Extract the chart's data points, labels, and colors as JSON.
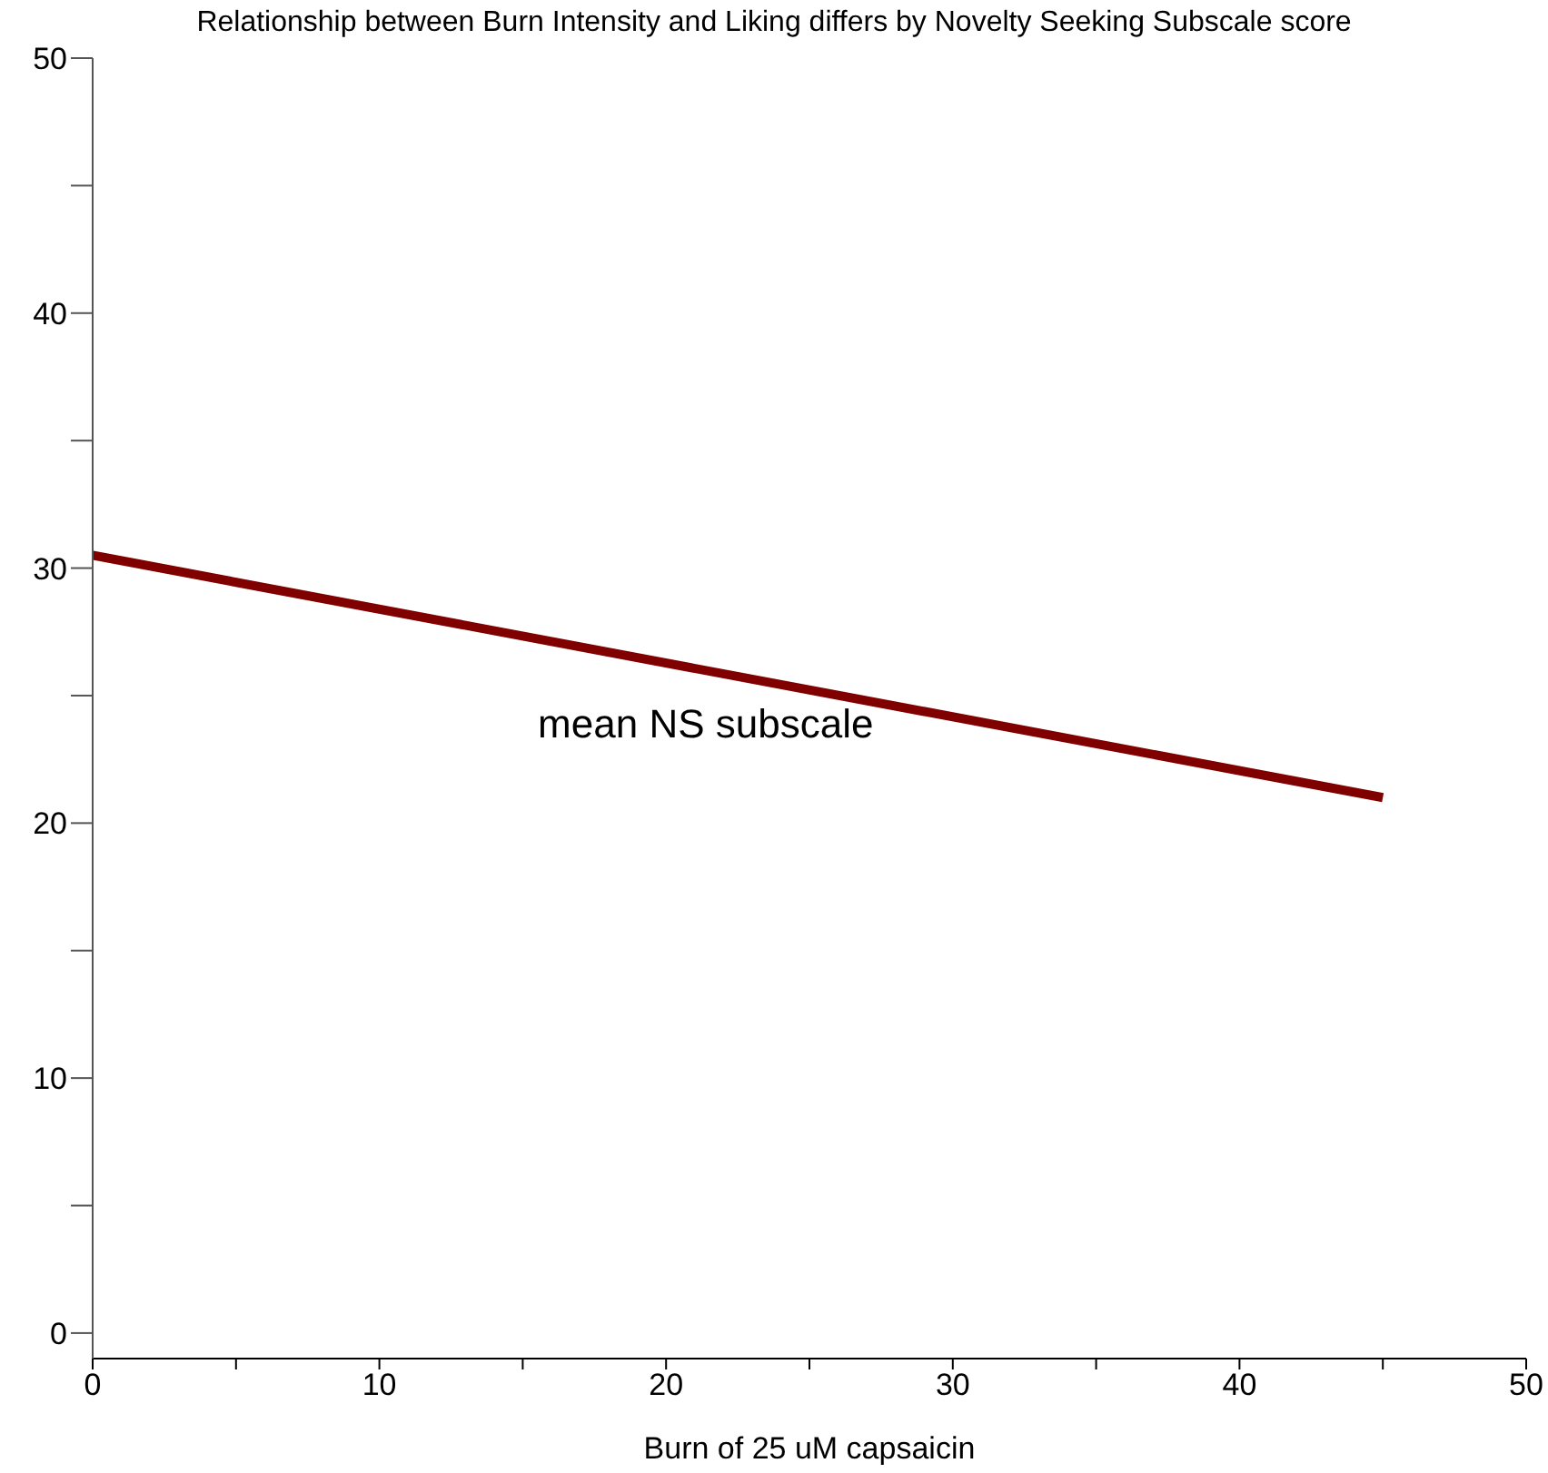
{
  "chart_data": {
    "type": "line",
    "title": "Relationship between Burn Intensity and Liking differs by Novelty Seeking Subscale score",
    "xlabel": "Burn of 25 uM capsaicin",
    "series": [
      {
        "name": "mean NS subscale",
        "color": "#800000",
        "x": [
          0,
          45
        ],
        "values": [
          30.5,
          21.0
        ]
      }
    ],
    "xlim": [
      0,
      50
    ],
    "xticks": [
      0,
      {
        "value": 5,
        "label": null
      },
      10,
      {
        "value": 15,
        "label": null
      },
      20,
      {
        "value": 25,
        "label": null
      },
      30,
      {
        "value": 35,
        "label": null
      },
      40,
      {
        "value": 45,
        "label": null
      },
      50
    ],
    "ylim": [
      -1,
      50
    ],
    "yticks": [
      0,
      {
        "value": 5,
        "label": null
      },
      10,
      {
        "value": 15,
        "label": null
      },
      20,
      {
        "value": 25,
        "label": null
      },
      30,
      {
        "value": 35,
        "label": null
      },
      40,
      {
        "value": 45,
        "label": null
      },
      50
    ],
    "grid": false,
    "legend": false,
    "marker": "none",
    "line_style": "solid"
  }
}
